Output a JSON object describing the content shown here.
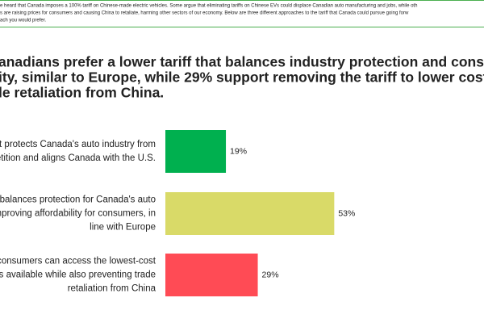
{
  "intro": [
    "e heard that Canada imposes a 100% tariff on Chinese-made electric vehicles. Some argue that eliminating tariffs on Chinese EVs could displace Canadian auto manufacturing and jobs, while oth",
    "s are raising prices for consumers and causing China to retaliate, harming other sectors of our economy. Below are three different approaches to the tariff that Canada could pursue going forw",
    "ach you would prefer."
  ],
  "chart_data": {
    "type": "bar",
    "orientation": "horizontal",
    "title": [
      "anadians prefer a lower tariff that balances industry protection and consum",
      "ity, similar to Europe, while 29% support removing the tariff to lower cost",
      "le retaliation from China."
    ],
    "categories": [
      [
        "at protects Canada's auto industry from",
        "petition and aligns Canada with the U.S."
      ],
      [
        "t balances protection for Canada's auto",
        "mproving affordability for consumers, in",
        "line with Europe"
      ],
      [
        "t consumers can access the lowest-cost",
        "cles available while also preventing trade",
        "retaliation from China"
      ]
    ],
    "values": [
      19,
      53,
      29
    ],
    "value_labels": [
      "19%",
      "53%",
      "29%"
    ],
    "colors": [
      "#00b04f",
      "#d9da68",
      "#ff4b55"
    ]
  }
}
